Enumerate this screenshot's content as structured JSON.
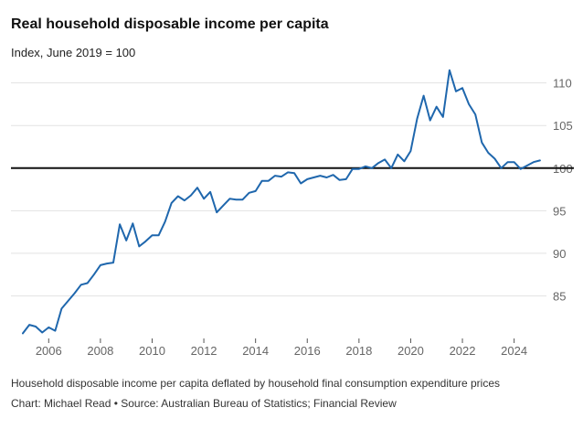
{
  "header": {
    "title": "Real household disposable income per capita",
    "subtitle": "Index, June 2019 = 100"
  },
  "footer": {
    "note": "Household disposable income per capita deflated by household final consumption expenditure prices",
    "source": "Chart: Michael Read • Source: Australian Bureau of Statistics; Financial Review"
  },
  "colors": {
    "series": "#1f67ad",
    "reference": "#111111",
    "grid": "#e3e3e3"
  },
  "chart_data": {
    "type": "line",
    "title": "Real household disposable income per capita",
    "subtitle": "Index, June 2019 = 100",
    "xlim": [
      2005.0,
      2025.25
    ],
    "ylim": [
      80,
      112
    ],
    "y_ticks": [
      85,
      90,
      95,
      100,
      105,
      110
    ],
    "x_ticks": [
      2006,
      2008,
      2010,
      2012,
      2014,
      2016,
      2018,
      2020,
      2022,
      2024
    ],
    "y_axis_position": "right",
    "grid": "horizontal",
    "reference_line": 100,
    "series": [
      {
        "x": [
          2005.0,
          2005.25,
          2005.5,
          2005.75,
          2006.0,
          2006.25,
          2006.5,
          2006.75,
          2007.0,
          2007.25,
          2007.5,
          2007.75,
          2008.0,
          2008.25,
          2008.5,
          2008.75,
          2009.0,
          2009.25,
          2009.5,
          2009.75,
          2010.0,
          2010.25,
          2010.5,
          2010.75,
          2011.0,
          2011.25,
          2011.5,
          2011.75,
          2012.0,
          2012.25,
          2012.5,
          2012.75,
          2013.0,
          2013.25,
          2013.5,
          2013.75,
          2014.0,
          2014.25,
          2014.5,
          2014.75,
          2015.0,
          2015.25,
          2015.5,
          2015.75,
          2016.0,
          2016.25,
          2016.5,
          2016.75,
          2017.0,
          2017.25,
          2017.5,
          2017.75,
          2018.0,
          2018.25,
          2018.5,
          2018.75,
          2019.0,
          2019.25,
          2019.5,
          2019.75,
          2020.0,
          2020.25,
          2020.5,
          2020.75,
          2021.0,
          2021.25,
          2021.5,
          2021.75,
          2022.0,
          2022.25,
          2022.5,
          2022.75,
          2023.0,
          2023.25,
          2023.5,
          2023.75,
          2024.0,
          2024.25,
          2024.5,
          2024.75,
          2025.0
        ],
        "values": [
          80.6,
          81.6,
          81.4,
          80.7,
          81.3,
          80.9,
          83.5,
          84.4,
          85.3,
          86.3,
          86.5,
          87.5,
          88.6,
          88.8,
          88.9,
          93.4,
          91.5,
          93.5,
          90.8,
          91.4,
          92.1,
          92.1,
          93.7,
          95.9,
          96.7,
          96.2,
          96.8,
          97.7,
          96.4,
          97.2,
          94.8,
          95.6,
          96.4,
          96.3,
          96.3,
          97.1,
          97.3,
          98.5,
          98.5,
          99.1,
          99.0,
          99.5,
          99.4,
          98.2,
          98.7,
          98.9,
          99.1,
          98.9,
          99.2,
          98.6,
          98.7,
          99.9,
          99.9,
          100.2,
          100.0,
          100.6,
          101.0,
          100.0,
          101.6,
          100.8,
          102.0,
          105.8,
          108.5,
          105.6,
          107.2,
          106.0,
          111.5,
          109.0,
          109.4,
          107.5,
          106.3,
          103.0,
          101.8,
          101.1,
          100.0,
          100.7,
          100.7,
          99.9,
          100.3,
          100.7,
          100.9
        ]
      }
    ]
  }
}
